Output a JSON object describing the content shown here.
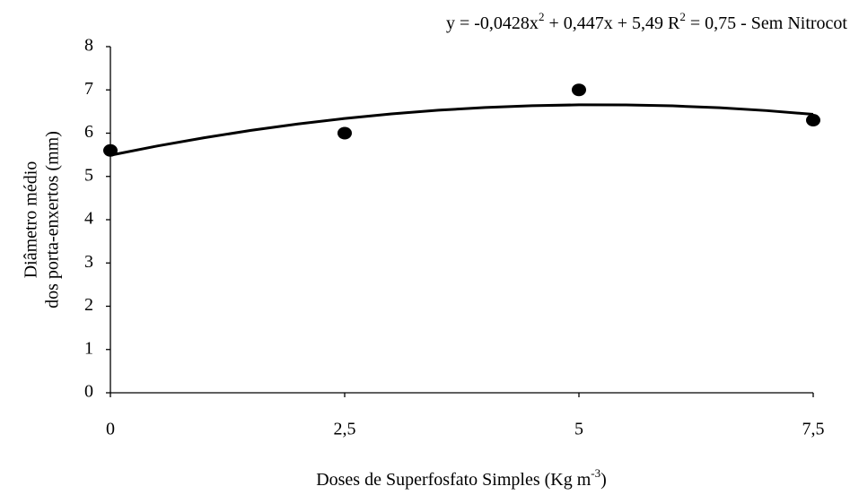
{
  "chart_data": {
    "type": "scatter",
    "equation": [
      "y = -0,0428x",
      "2",
      " + 0,447x + 5,49  R",
      "2",
      " = 0,75  -  Sem Nitrocot"
    ],
    "x_label": [
      "Doses de Superfosfato Simples (Kg m",
      "-3",
      ")"
    ],
    "y_label": [
      "Diâmetro médio",
      "dos porta-enxertos (mm)"
    ],
    "x": [
      0,
      2.5,
      5,
      7.5
    ],
    "values": [
      5.6,
      6.0,
      7.0,
      6.3
    ],
    "color": "#000000",
    "trendline": {
      "x": [
        0,
        0.5,
        1,
        1.5,
        2,
        2.5,
        3,
        3.5,
        4,
        4.5,
        5,
        5.5,
        6,
        6.5,
        7,
        7.5
      ],
      "values": [
        5.49,
        5.703,
        5.894,
        6.064,
        6.213,
        6.34,
        6.446,
        6.53,
        6.593,
        6.635,
        6.655,
        6.654,
        6.631,
        6.587,
        6.522,
        6.435
      ]
    },
    "xlim": [
      0,
      7.5
    ],
    "xticks": [
      0,
      {
        "value": 2.5,
        "label": "2,5"
      },
      5,
      {
        "value": 7.5,
        "label": "7,5"
      }
    ],
    "ylim": [
      0,
      8
    ],
    "yticks": [
      0,
      1,
      2,
      3,
      4,
      5,
      6,
      7,
      8
    ],
    "grid": false
  }
}
